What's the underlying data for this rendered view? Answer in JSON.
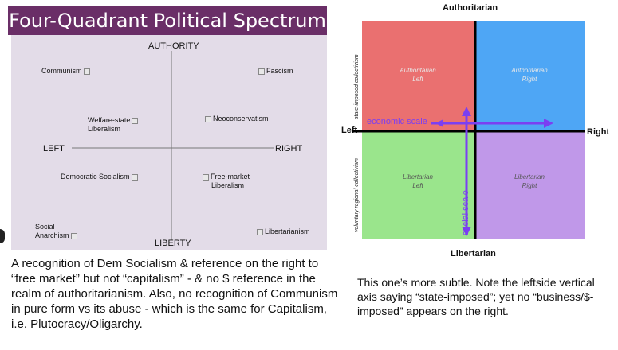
{
  "left_chart": {
    "title": "Four-Quadrant Political Spectrum",
    "axis_top": "AUTHORITY",
    "axis_bottom": "LIBERTY",
    "axis_left": "LEFT",
    "axis_right": "RIGHT",
    "labels": {
      "communism": "Communism",
      "fascism": "Fascism",
      "welfare_state": [
        "Welfare-state",
        "Liberalism"
      ],
      "neoconservatism": "Neoconservatism",
      "democratic_socialism": "Democratic Socialism",
      "free_market": [
        "Free-market",
        "Liberalism"
      ],
      "social_anarchism": [
        "Social",
        "Anarchism"
      ],
      "libertarianism": "Libertarianism"
    }
  },
  "left_caption": "A recognition of Dem Socialism & reference on the right to “free market” but not “capitalism” - & no $ reference in the realm of authoritarianism.  Also, no recognition of Communism in pure form vs its abuse - which is the same for Capitalism, i.e. Plutocracy/Oligarchy.",
  "right_chart": {
    "axis_top": "Authoritarian",
    "axis_bottom": "Libertarian",
    "axis_left": "Left",
    "axis_right": "Right",
    "quadrants": {
      "top_left": [
        "Authoritarian",
        "Left"
      ],
      "top_right": [
        "Authoritarian",
        "Right"
      ],
      "bottom_left": [
        "Libertarian",
        "Left"
      ],
      "bottom_right": [
        "Libertarian",
        "Right"
      ]
    },
    "colors": {
      "top_left": "#ea7070",
      "top_right": "#4ea6f5",
      "bottom_left": "#9ae58c",
      "bottom_right": "#c098e9",
      "annotation": "#7b3ff2"
    },
    "economic_scale": "economic scale",
    "social_scale": "social scale",
    "vertical_top": "state-imposed collectivism",
    "vertical_bottom": "voluntary regional collectivism"
  },
  "right_caption": "This one’s more subtle. Note the leftside vertical axis saying “state-imposed”; yet no “business/$-imposed” appears on the right."
}
